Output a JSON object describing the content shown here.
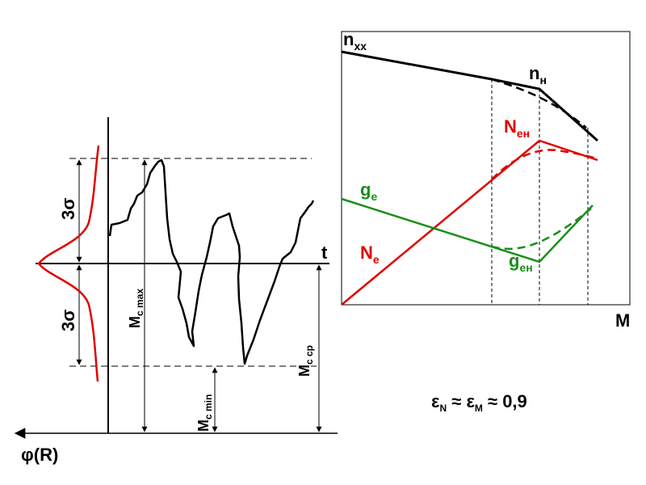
{
  "left_diagram": {
    "axis_t_label": "t",
    "phi_label": "φ(R)",
    "sigma_upper": "3σ",
    "sigma_lower": "3σ",
    "m_c_max": {
      "main": "M",
      "sub": "c max"
    },
    "m_c_min": {
      "main": "M",
      "sub": "c min"
    },
    "m_c_cp": {
      "main": "M",
      "sub": "c cp"
    }
  },
  "right_diagram": {
    "n_xx": {
      "main": "n",
      "sub": "xx"
    },
    "n_n": {
      "main": "n",
      "sub": "н"
    },
    "N_en": {
      "main": "N",
      "sub": "ен"
    },
    "g_e": {
      "main": "g",
      "sub": "e"
    },
    "N_e": {
      "main": "N",
      "sub": "e"
    },
    "g_en": {
      "main": "g",
      "sub": "ен"
    },
    "axis_M": "M"
  },
  "formula": {
    "eps": "ε",
    "sub_n": "N",
    "approx1": " ≈ ",
    "sub_m": "M",
    "approx2": " ≈ 0,9"
  },
  "colors": {
    "black": "#000000",
    "red": "#e00000",
    "green": "#1a8f1a"
  }
}
